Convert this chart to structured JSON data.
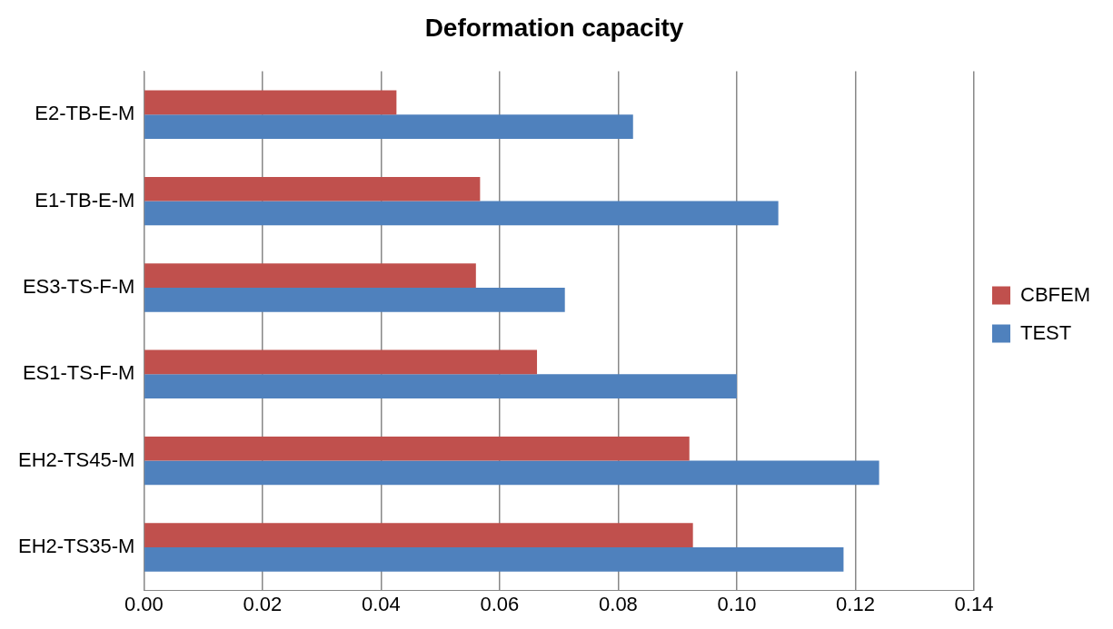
{
  "chart_data": {
    "type": "bar",
    "orientation": "horizontal",
    "title": "Deformation capacity",
    "categories": [
      "E2-TB-E-M",
      "E1-TB-E-M",
      "ES3-TS-F-M",
      "ES1-TS-F-M",
      "EH2-TS45-M",
      "EH2-TS35-M"
    ],
    "series": [
      {
        "name": "CBFEM",
        "color": "#c0504d",
        "values": [
          0.0426,
          0.0567,
          0.056,
          0.0663,
          0.092,
          0.0926
        ]
      },
      {
        "name": "TEST",
        "color": "#4f81bd",
        "values": [
          0.0825,
          0.107,
          0.071,
          0.1,
          0.124,
          0.118
        ]
      }
    ],
    "xlim": [
      0,
      0.14
    ],
    "xticks": [
      {
        "value": 0,
        "label": "0.00"
      },
      {
        "value": 0.02,
        "label": "0.02"
      },
      {
        "value": 0.04,
        "label": "0.04"
      },
      {
        "value": 0.06,
        "label": "0.06"
      },
      {
        "value": 0.08,
        "label": "0.08"
      },
      {
        "value": 0.1,
        "label": "0.10"
      },
      {
        "value": 0.12,
        "label": "0.12"
      },
      {
        "value": 0.14,
        "label": "0.14"
      }
    ],
    "grid": "x",
    "legend": "right"
  }
}
